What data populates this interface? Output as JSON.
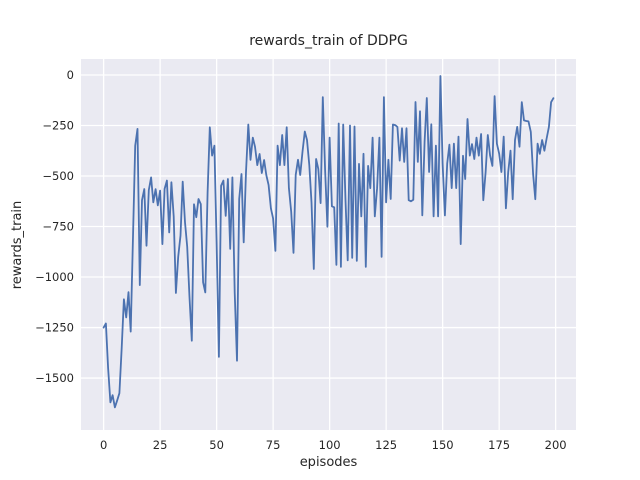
{
  "figure": {
    "background": "#ffffff"
  },
  "chart_data": {
    "type": "line",
    "title": "rewards_train of DDPG",
    "xlabel": "episodes",
    "ylabel": "rewards_train",
    "x_ticks": [
      0,
      25,
      50,
      75,
      100,
      125,
      150,
      175,
      200
    ],
    "y_ticks": [
      0,
      -250,
      -500,
      -750,
      -1000,
      -1250,
      -1500
    ],
    "xlim": [
      -10,
      209
    ],
    "ylim": [
      -1757,
      79
    ],
    "grid": true,
    "legend": "none",
    "colors": {
      "plot_bg": "#eaeaf2",
      "grid_line": "#ffffff",
      "series_line": "#4c72b0",
      "text": "#262626"
    },
    "x_start": 0,
    "x_step": 1,
    "series": [
      {
        "name": "rewards_train",
        "values": [
          -1250,
          -1230,
          -1450,
          -1620,
          -1585,
          -1645,
          -1610,
          -1575,
          -1350,
          -1110,
          -1200,
          -1075,
          -1270,
          -800,
          -350,
          -267,
          -1040,
          -620,
          -565,
          -845,
          -570,
          -507,
          -630,
          -565,
          -645,
          -573,
          -837,
          -564,
          -523,
          -779,
          -531,
          -700,
          -1079,
          -900,
          -795,
          -528,
          -729,
          -850,
          -1100,
          -1315,
          -640,
          -704,
          -614,
          -639,
          -1026,
          -1076,
          -581,
          -259,
          -399,
          -350,
          -828,
          -1395,
          -548,
          -523,
          -697,
          -515,
          -861,
          -507,
          -1076,
          -1414,
          -614,
          -490,
          -828,
          -480,
          -245,
          -420,
          -310,
          -355,
          -446,
          -391,
          -485,
          -421,
          -495,
          -545,
          -660,
          -710,
          -870,
          -350,
          -446,
          -297,
          -446,
          -259,
          -560,
          -677,
          -880,
          -495,
          -420,
          -495,
          -380,
          -280,
          -322,
          -446,
          -630,
          -960,
          -416,
          -465,
          -634,
          -110,
          -470,
          -751,
          -310,
          -650,
          -655,
          -940,
          -240,
          -950,
          -245,
          -620,
          -917,
          -250,
          -905,
          -255,
          -920,
          -440,
          -700,
          -390,
          -950,
          -450,
          -560,
          -310,
          -700,
          -560,
          -310,
          -900,
          -110,
          -630,
          -420,
          -614,
          -245,
          -248,
          -257,
          -424,
          -264,
          -430,
          -264,
          -620,
          -625,
          -618,
          -134,
          -430,
          -180,
          -695,
          -330,
          -114,
          -480,
          -244,
          -700,
          -350,
          -700,
          -5,
          -437,
          -695,
          -438,
          -345,
          -560,
          -340,
          -560,
          -305,
          -837,
          -400,
          -515,
          -218,
          -399,
          -342,
          -416,
          -310,
          -399,
          -292,
          -620,
          -482,
          -297,
          -399,
          -450,
          -105,
          -340,
          -390,
          -480,
          -305,
          -660,
          -480,
          -375,
          -615,
          -322,
          -257,
          -355,
          -135,
          -225,
          -228,
          -230,
          -282,
          -490,
          -615,
          -340,
          -390,
          -322,
          -375,
          -315,
          -257,
          -135,
          -115
        ]
      }
    ]
  }
}
